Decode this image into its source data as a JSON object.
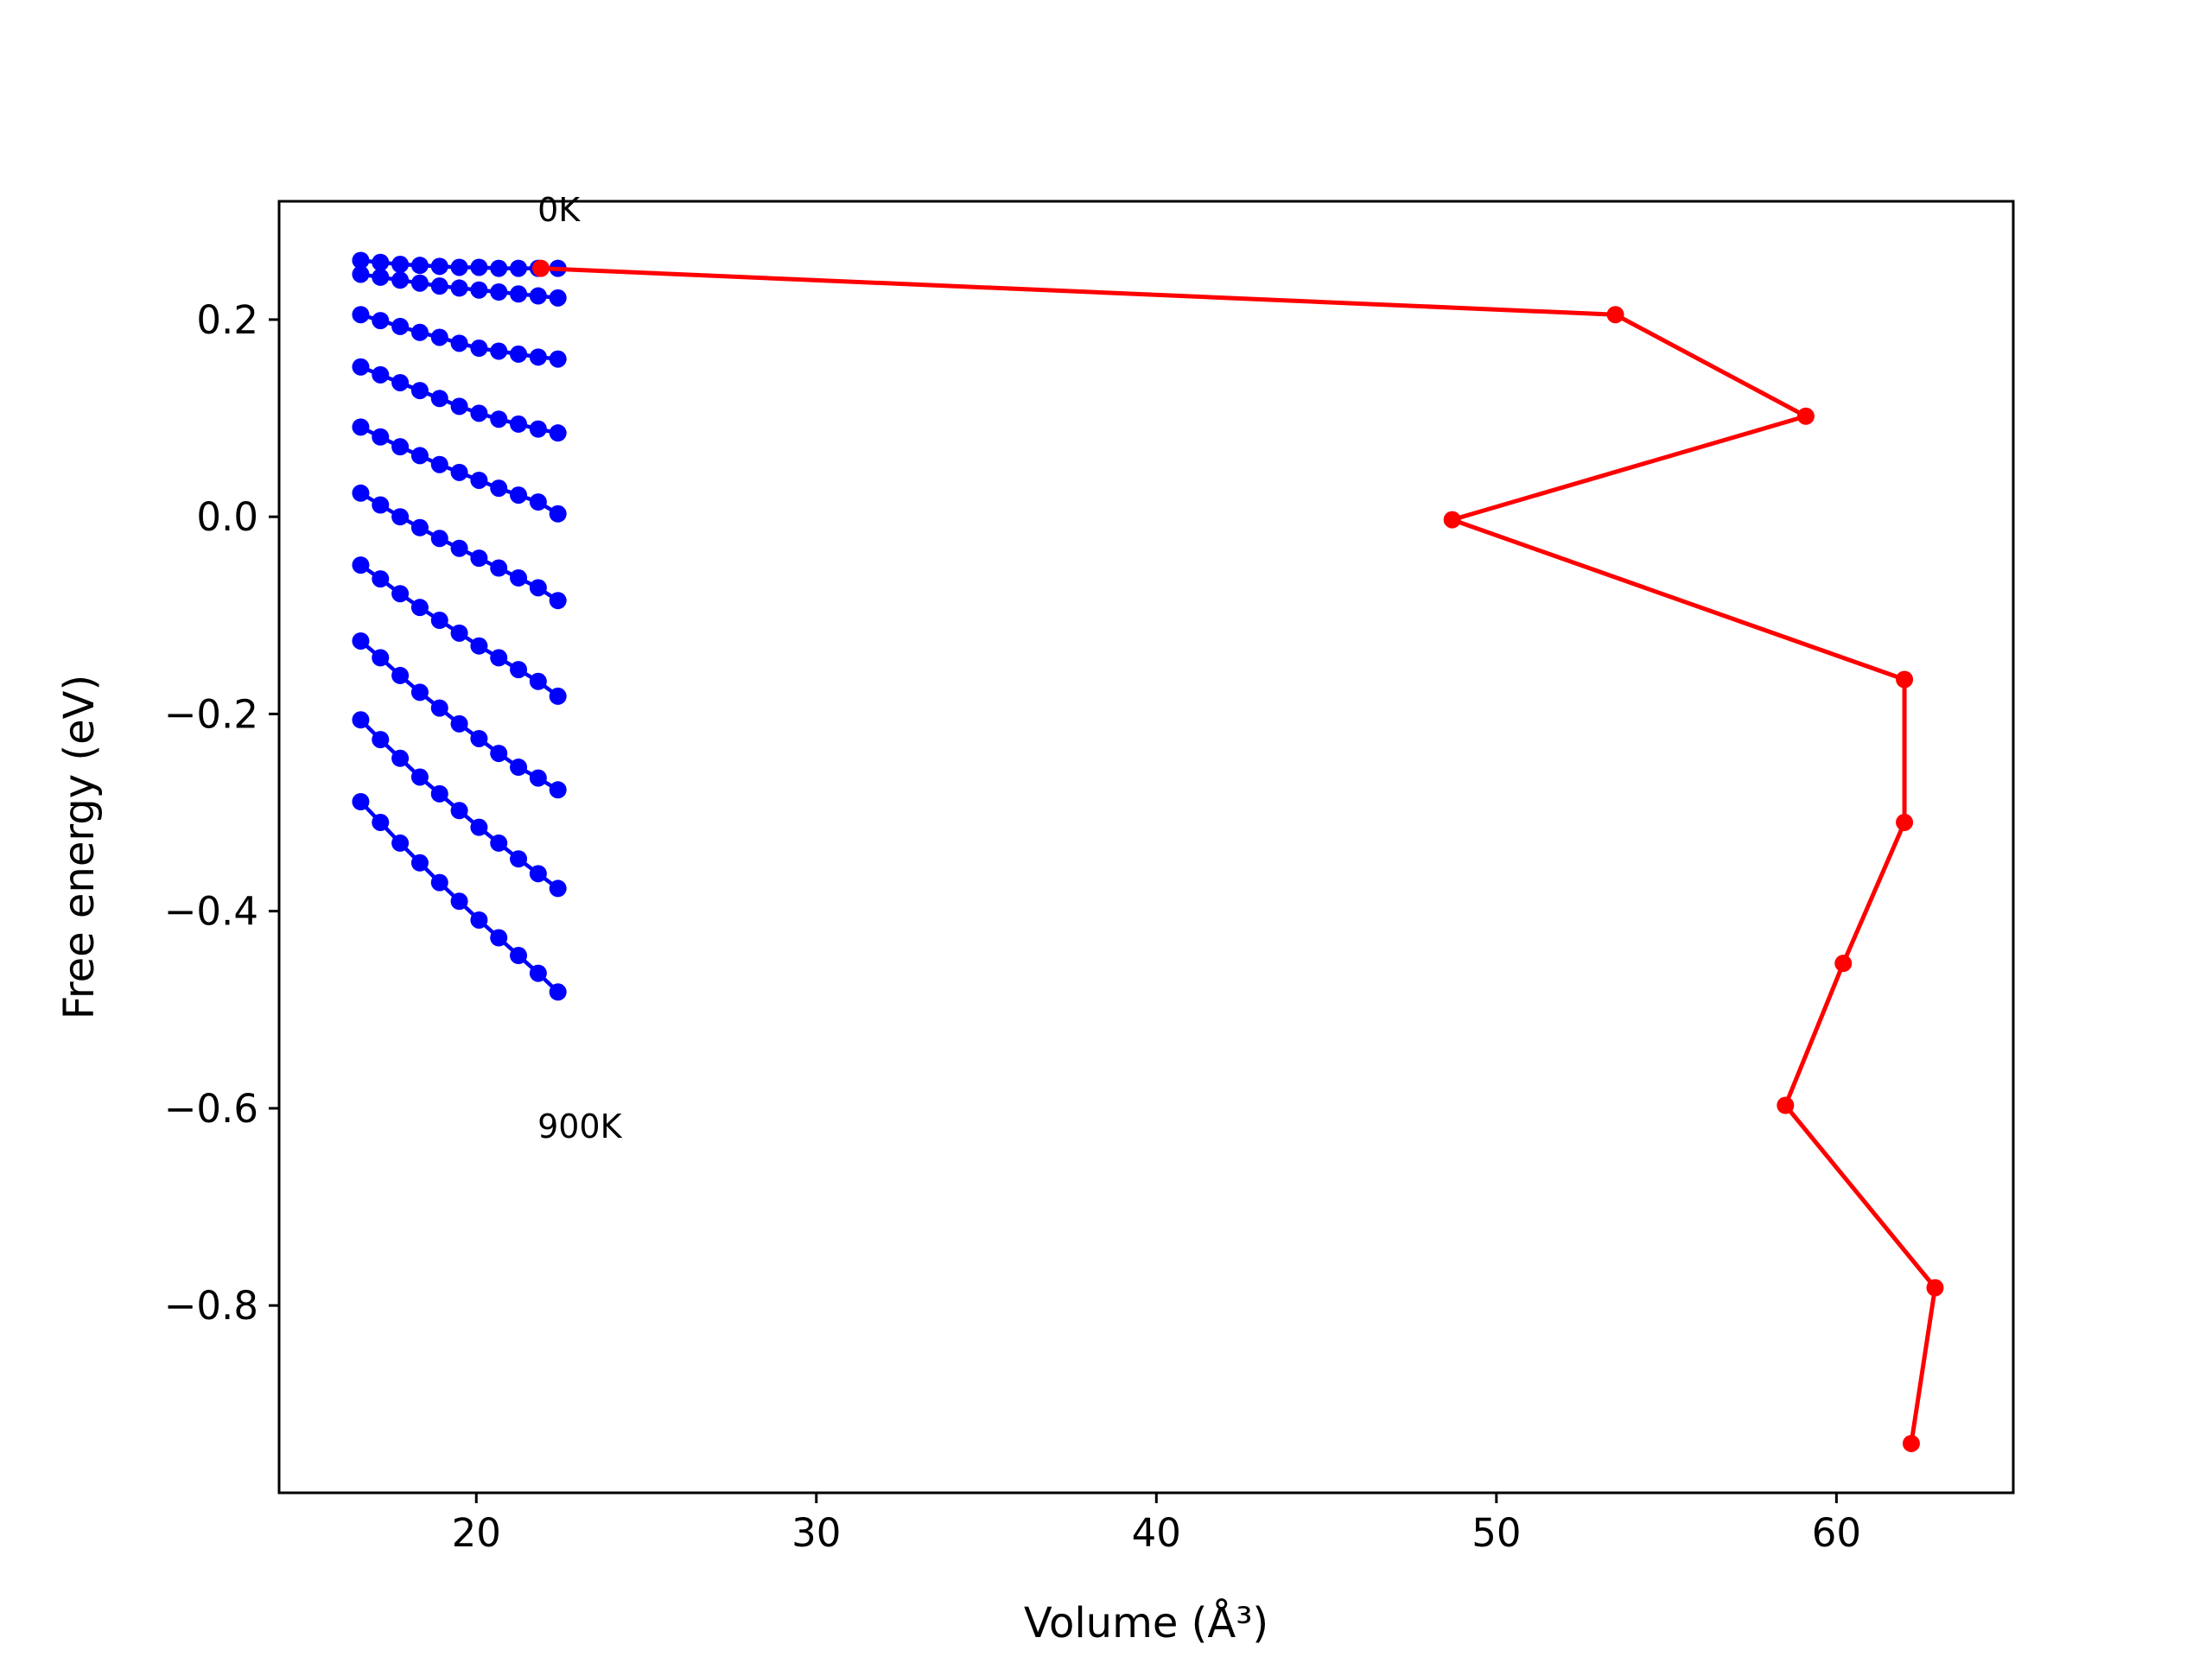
{
  "chart_data": {
    "type": "line",
    "title": "",
    "xlabel": "Volume (Å³)",
    "ylabel": "Free energy (eV)",
    "xlim": [
      14.2,
      65.2
    ],
    "ylim": [
      -0.99,
      0.32
    ],
    "xticks": [
      20,
      30,
      40,
      50,
      60
    ],
    "xtick_labels": [
      "20",
      "30",
      "40",
      "50",
      "60"
    ],
    "yticks": [
      0.2,
      0.0,
      -0.2,
      -0.4,
      -0.6,
      -0.8
    ],
    "ytick_labels": [
      "0.2",
      "0.0",
      "−0.2",
      "−0.4",
      "−0.6",
      "−0.8"
    ],
    "grid": false,
    "legend": "none",
    "annotations": [
      {
        "text": "0K",
        "x": 21.8,
        "y": 0.3
      },
      {
        "text": "900K",
        "x": 21.8,
        "y": -0.63
      }
    ],
    "colors": {
      "curves": "#0000ff",
      "minimum_path": "#ff0000"
    },
    "curves": {
      "color": "#0000ff",
      "x": [
        16.6,
        17.18,
        17.76,
        18.34,
        18.92,
        19.5,
        20.08,
        20.66,
        21.24,
        21.82,
        22.4
      ],
      "series": [
        {
          "values": [
            0.26,
            0.258,
            0.256,
            0.255,
            0.254,
            0.253,
            0.253,
            0.252,
            0.252,
            0.252,
            0.252
          ]
        },
        {
          "values": [
            0.246,
            0.243,
            0.24,
            0.237,
            0.234,
            0.232,
            0.23,
            0.228,
            0.226,
            0.224,
            0.222
          ]
        },
        {
          "values": [
            0.205,
            0.199,
            0.193,
            0.187,
            0.182,
            0.176,
            0.171,
            0.168,
            0.165,
            0.162,
            0.16
          ]
        },
        {
          "values": [
            0.152,
            0.144,
            0.136,
            0.128,
            0.12,
            0.112,
            0.105,
            0.099,
            0.094,
            0.089,
            0.085
          ]
        },
        {
          "values": [
            0.091,
            0.081,
            0.071,
            0.062,
            0.053,
            0.045,
            0.037,
            0.029,
            0.022,
            0.015,
            0.003
          ]
        },
        {
          "values": [
            0.024,
            0.012,
            0.0,
            -0.011,
            -0.022,
            -0.032,
            -0.042,
            -0.052,
            -0.062,
            -0.072,
            -0.085
          ]
        },
        {
          "values": [
            -0.049,
            -0.063,
            -0.078,
            -0.092,
            -0.105,
            -0.118,
            -0.131,
            -0.143,
            -0.155,
            -0.167,
            -0.182
          ]
        },
        {
          "values": [
            -0.126,
            -0.143,
            -0.161,
            -0.178,
            -0.194,
            -0.21,
            -0.225,
            -0.24,
            -0.254,
            -0.265,
            -0.277
          ]
        },
        {
          "values": [
            -0.206,
            -0.226,
            -0.245,
            -0.264,
            -0.281,
            -0.298,
            -0.315,
            -0.331,
            -0.347,
            -0.362,
            -0.377
          ]
        },
        {
          "values": [
            -0.289,
            -0.31,
            -0.331,
            -0.351,
            -0.371,
            -0.39,
            -0.409,
            -0.427,
            -0.445,
            -0.463,
            -0.482
          ]
        }
      ]
    },
    "minimum_path": {
      "color": "#ff0000",
      "points": [
        {
          "x": 21.9,
          "y": 0.252
        },
        {
          "x": 53.5,
          "y": 0.205
        },
        {
          "x": 59.1,
          "y": 0.102
        },
        {
          "x": 48.7,
          "y": -0.003
        },
        {
          "x": 62.0,
          "y": -0.165
        },
        {
          "x": 62.0,
          "y": -0.31
        },
        {
          "x": 60.2,
          "y": -0.453
        },
        {
          "x": 58.5,
          "y": -0.597
        },
        {
          "x": 62.9,
          "y": -0.782
        },
        {
          "x": 62.2,
          "y": -0.94
        }
      ]
    }
  }
}
